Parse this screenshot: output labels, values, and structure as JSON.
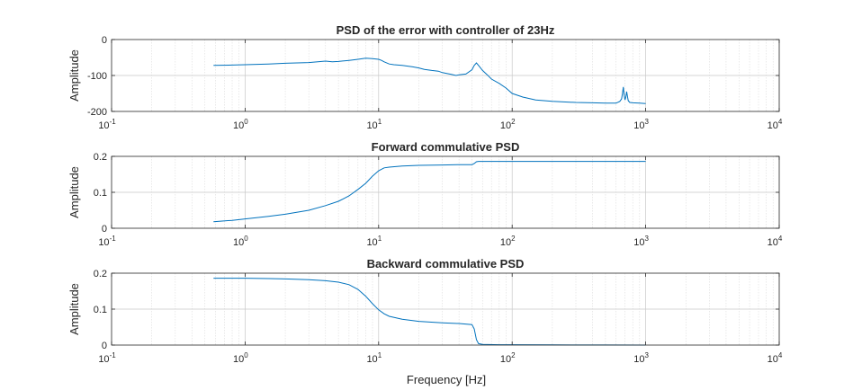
{
  "figure": {
    "xlabel": "Frequency [Hz]",
    "background": "#ffffff",
    "axes_color": "#262626",
    "grid_color": "#c8c8c8",
    "line_color": "#0072BD"
  },
  "chart_data": [
    {
      "type": "line",
      "title": "PSD of the error with controller of 23Hz",
      "xlabel": "",
      "ylabel": "Amplitude",
      "xscale": "log",
      "xlim": [
        0.1,
        10000
      ],
      "ylim": [
        -200,
        0
      ],
      "yticks": [
        "0",
        "-100",
        "-200"
      ],
      "xticks": [
        "10",
        "10",
        "10",
        "10",
        "10",
        "10"
      ],
      "xtick_exponents": [
        "-1",
        "0",
        "1",
        "2",
        "3",
        "4"
      ],
      "grid": true,
      "series": [
        {
          "x": [
            0.58,
            0.8,
            1,
            1.5,
            2,
            3,
            3.5,
            4,
            4.5,
            5,
            6,
            7,
            8,
            9,
            10,
            10.5,
            11,
            12,
            13,
            15,
            18,
            20,
            22,
            25,
            28,
            30,
            33,
            35,
            38,
            40,
            45,
            50,
            52,
            54,
            56,
            60,
            65,
            70,
            80,
            90,
            100,
            120,
            150,
            200,
            300,
            400,
            500,
            600,
            640,
            660,
            670,
            680,
            690,
            700,
            710,
            720,
            740,
            760,
            800,
            900,
            1000
          ],
          "y": [
            -72,
            -71,
            -70,
            -68,
            -66,
            -64,
            -62,
            -60,
            -62,
            -61,
            -58,
            -55,
            -52,
            -53,
            -55,
            -58,
            -62,
            -68,
            -70,
            -72,
            -76,
            -79,
            -83,
            -86,
            -88,
            -92,
            -95,
            -97,
            -100,
            -98,
            -96,
            -84,
            -72,
            -65,
            -72,
            -86,
            -98,
            -110,
            -122,
            -135,
            -150,
            -160,
            -168,
            -172,
            -175,
            -176,
            -177,
            -177,
            -172,
            -165,
            -150,
            -132,
            -155,
            -168,
            -160,
            -145,
            -170,
            -175,
            -176,
            -177,
            -178
          ]
        }
      ]
    },
    {
      "type": "line",
      "title": "Forward commulative PSD",
      "xlabel": "",
      "ylabel": "Amplitude",
      "xscale": "log",
      "xlim": [
        0.1,
        10000
      ],
      "ylim": [
        0,
        0.2
      ],
      "yticks": [
        "0.2",
        "0.1",
        "0"
      ],
      "xticks": [
        "10",
        "10",
        "10",
        "10",
        "10",
        "10"
      ],
      "xtick_exponents": [
        "-1",
        "0",
        "1",
        "2",
        "3",
        "4"
      ],
      "grid": true,
      "series": [
        {
          "x": [
            0.58,
            0.8,
            1,
            1.5,
            2,
            3,
            4,
            5,
            6,
            7,
            8,
            9,
            10,
            11,
            12,
            15,
            20,
            30,
            40,
            50,
            52,
            54,
            56,
            60,
            80,
            100,
            200,
            500,
            1000
          ],
          "y": [
            0.018,
            0.022,
            0.026,
            0.033,
            0.039,
            0.05,
            0.063,
            0.075,
            0.09,
            0.108,
            0.125,
            0.145,
            0.16,
            0.168,
            0.17,
            0.173,
            0.175,
            0.176,
            0.177,
            0.177,
            0.18,
            0.185,
            0.186,
            0.186,
            0.186,
            0.186,
            0.186,
            0.186,
            0.186
          ]
        }
      ]
    },
    {
      "type": "line",
      "title": "Backward commulative PSD",
      "xlabel": "Frequency [Hz]",
      "ylabel": "Amplitude",
      "xscale": "log",
      "xlim": [
        0.1,
        10000
      ],
      "ylim": [
        0,
        0.2
      ],
      "yticks": [
        "0.2",
        "0.1",
        "0"
      ],
      "xticks": [
        "10",
        "10",
        "10",
        "10",
        "10",
        "10"
      ],
      "xtick_exponents": [
        "-1",
        "0",
        "1",
        "2",
        "3",
        "4"
      ],
      "grid": true,
      "series": [
        {
          "x": [
            0.58,
            0.8,
            1,
            1.5,
            2,
            3,
            4,
            5,
            6,
            7,
            8,
            9,
            10,
            11,
            12,
            15,
            20,
            30,
            40,
            50,
            52,
            54,
            56,
            60,
            80,
            100,
            200,
            500,
            1000
          ],
          "y": [
            0.186,
            0.186,
            0.186,
            0.185,
            0.184,
            0.182,
            0.179,
            0.175,
            0.168,
            0.155,
            0.136,
            0.115,
            0.098,
            0.087,
            0.08,
            0.072,
            0.066,
            0.062,
            0.06,
            0.057,
            0.045,
            0.015,
            0.004,
            0.002,
            0.001,
            0.001,
            0.0005,
            0.0002,
            0.0
          ]
        }
      ]
    }
  ]
}
